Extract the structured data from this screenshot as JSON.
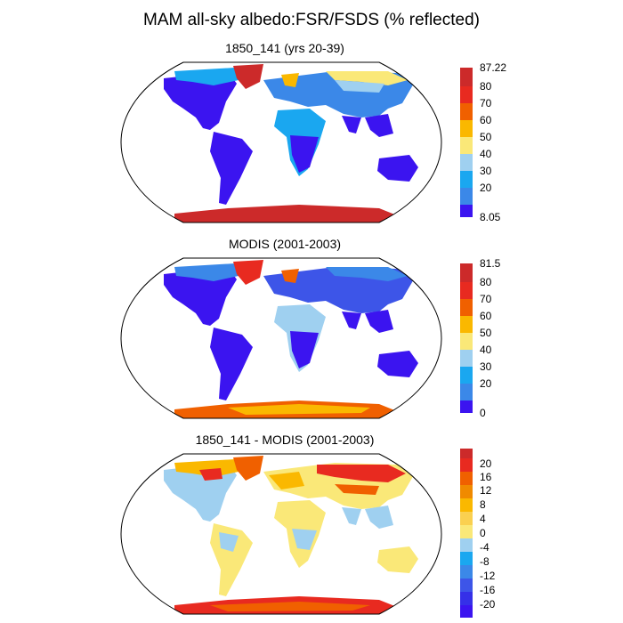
{
  "title": "MAM all-sky albedo:FSR/FSDS (% reflected)",
  "panels": [
    {
      "title": "1850_141 (yrs 20-39)",
      "colorbar": {
        "colors": [
          "#3b14f0",
          "#3d55e8",
          "#3b88e8",
          "#1aa7f0",
          "#9fd0f0",
          "#fae878",
          "#fab800",
          "#f06000",
          "#e82a20",
          "#cc2a2a"
        ],
        "labels": [
          "87.22",
          "80",
          "70",
          "60",
          "50",
          "40",
          "30",
          "20",
          "8.05"
        ]
      }
    },
    {
      "title": "MODIS (2001-2003)",
      "colorbar": {
        "colors": [
          "#3b14f0",
          "#3d55e8",
          "#3b88e8",
          "#1aa7f0",
          "#9fd0f0",
          "#fae878",
          "#fab800",
          "#f06000",
          "#e82a20",
          "#cc2a2a"
        ],
        "labels": [
          "81.5",
          "80",
          "70",
          "60",
          "50",
          "40",
          "30",
          "20",
          "0"
        ]
      }
    },
    {
      "title": "1850_141 - MODIS (2001-2003)",
      "colorbar": {
        "colors": [
          "#3b14f0",
          "#3530e8",
          "#3d55e8",
          "#3b88e8",
          "#1aa7f0",
          "#9fd0f0",
          "#fae878",
          "#fad050",
          "#fab800",
          "#f08a00",
          "#f06000",
          "#e82a20",
          "#cc2a2a"
        ],
        "labels": [
          "20",
          "16",
          "12",
          "8",
          "4",
          "0",
          "-4",
          "-8",
          "-12",
          "-16",
          "-20"
        ]
      }
    }
  ]
}
